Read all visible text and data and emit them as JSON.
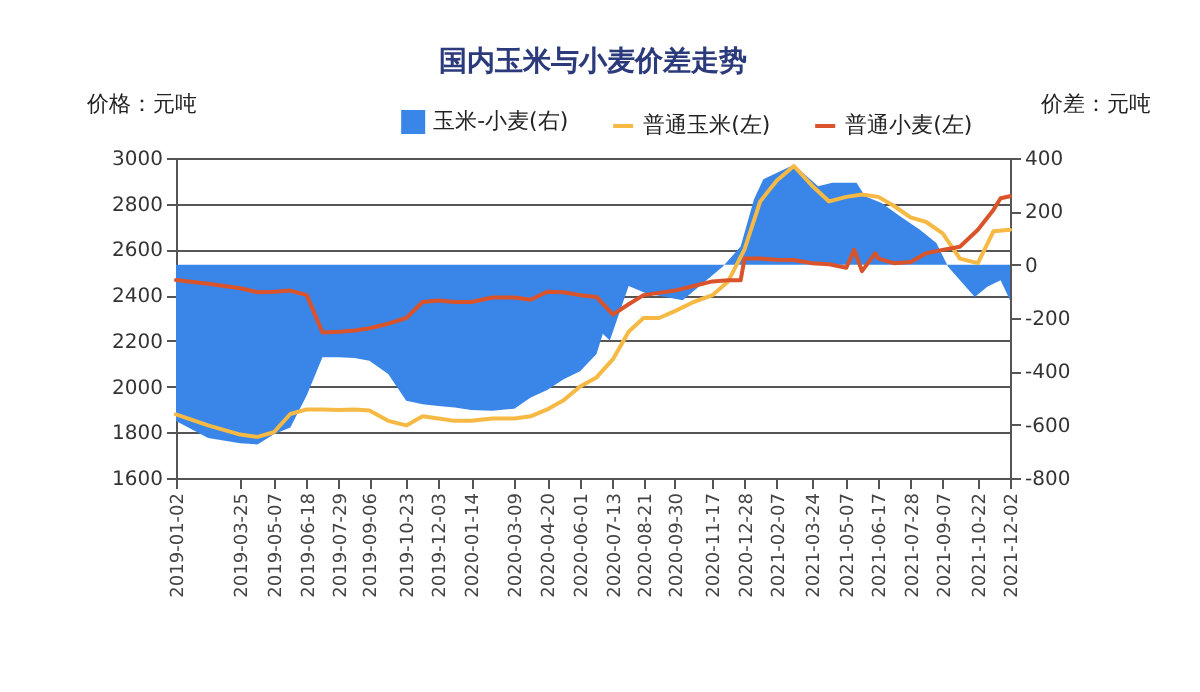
{
  "chart_data": {
    "type": "line",
    "title": "国内玉米与小麦价差走势",
    "ylabel": "价格：元吨",
    "y2label": "价差：元吨",
    "xlim": [
      "2019-01-02",
      "2021-12-02"
    ],
    "xticks": [
      "2019-01-02",
      "2019-03-25",
      "2019-05-07",
      "2019-06-18",
      "2019-07-29",
      "2019-09-06",
      "2019-10-23",
      "2019-12-03",
      "2020-01-14",
      "2020-03-09",
      "2020-04-20",
      "2020-06-01",
      "2020-07-13",
      "2020-08-21",
      "2020-09-30",
      "2020-11-17",
      "2020-12-28",
      "2021-02-07",
      "2021-03-24",
      "2021-05-07",
      "2021-06-17",
      "2021-07-28",
      "2021-09-07",
      "2021-10-22",
      "2021-12-02"
    ],
    "ylim": [
      1600,
      3000
    ],
    "yticks": [
      1600,
      1800,
      2000,
      2200,
      2400,
      2600,
      2800,
      3000
    ],
    "y2lim": [
      -800,
      400
    ],
    "y2ticks": [
      -800,
      -600,
      -400,
      -200,
      0,
      200,
      400
    ],
    "grid": "y",
    "legend": "top",
    "series": [
      {
        "name": "玉米-小麦(右)",
        "type": "area",
        "axis": "y2",
        "color": "#3a86e8",
        "x": [
          "2019-01-02",
          "2019-02-12",
          "2019-03-25",
          "2019-04-16",
          "2019-05-07",
          "2019-05-28",
          "2019-06-18",
          "2019-07-08",
          "2019-07-29",
          "2019-08-18",
          "2019-09-06",
          "2019-09-30",
          "2019-10-23",
          "2019-11-13",
          "2019-12-03",
          "2019-12-24",
          "2020-01-14",
          "2020-02-10",
          "2020-03-09",
          "2020-03-30",
          "2020-04-20",
          "2020-05-11",
          "2020-06-01",
          "2020-06-22",
          "2020-06-30",
          "2020-07-09",
          "2020-08-02",
          "2020-08-25",
          "2020-10-10",
          "2020-11-30",
          "2020-12-23",
          "2021-01-09",
          "2021-01-21",
          "2021-03-01",
          "2021-04-01",
          "2021-04-19",
          "2021-05-20",
          "2021-05-31",
          "2021-06-21",
          "2021-07-15",
          "2021-08-09",
          "2021-08-30",
          "2021-09-14",
          "2021-10-18",
          "2021-11-03",
          "2021-11-20",
          "2021-12-02"
        ],
        "values": [
          -586,
          -650,
          -670,
          -674,
          -636,
          -611,
          -490,
          -347,
          -347,
          -350,
          -360,
          -410,
          -510,
          -523,
          -530,
          -536,
          -545,
          -548,
          -540,
          -498,
          -470,
          -430,
          -400,
          -335,
          -259,
          -284,
          -80,
          -108,
          -133,
          -8,
          68,
          244,
          320,
          375,
          294,
          307,
          307,
          257,
          231,
          181,
          131,
          81,
          -8,
          -121,
          -83,
          -58,
          -133
        ]
      },
      {
        "name": "普通玉米(左)",
        "color": "#f5b944",
        "x": [
          "2019-01-02",
          "2019-02-12",
          "2019-03-25",
          "2019-04-16",
          "2019-05-07",
          "2019-05-28",
          "2019-06-18",
          "2019-07-08",
          "2019-07-29",
          "2019-08-18",
          "2019-09-06",
          "2019-09-30",
          "2019-10-23",
          "2019-11-13",
          "2019-12-03",
          "2019-12-24",
          "2020-01-14",
          "2020-02-10",
          "2020-03-09",
          "2020-03-30",
          "2020-04-20",
          "2020-05-11",
          "2020-06-01",
          "2020-06-22",
          "2020-07-13",
          "2020-08-02",
          "2020-08-21",
          "2020-09-10",
          "2020-09-30",
          "2020-10-24",
          "2020-11-17",
          "2020-12-07",
          "2020-12-28",
          "2021-01-17",
          "2021-02-07",
          "2021-03-01",
          "2021-03-24",
          "2021-04-15",
          "2021-05-07",
          "2021-05-27",
          "2021-06-17",
          "2021-07-07",
          "2021-07-28",
          "2021-08-17",
          "2021-09-07",
          "2021-09-29",
          "2021-10-22",
          "2021-11-11",
          "2021-12-02"
        ],
        "values": [
          1878,
          1830,
          1790,
          1780,
          1800,
          1880,
          1900,
          1900,
          1898,
          1900,
          1895,
          1850,
          1830,
          1870,
          1860,
          1850,
          1850,
          1860,
          1860,
          1870,
          1900,
          1940,
          2000,
          2040,
          2120,
          2240,
          2300,
          2300,
          2330,
          2370,
          2400,
          2460,
          2600,
          2810,
          2900,
          2965,
          2880,
          2810,
          2830,
          2840,
          2830,
          2790,
          2740,
          2720,
          2670,
          2560,
          2540,
          2680,
          2686
        ]
      },
      {
        "name": "普通小麦(左)",
        "color": "#d9532b",
        "x": [
          "2019-01-02",
          "2019-02-12",
          "2019-03-25",
          "2019-04-16",
          "2019-05-07",
          "2019-05-28",
          "2019-06-18",
          "2019-07-08",
          "2019-07-29",
          "2019-08-18",
          "2019-09-06",
          "2019-09-30",
          "2019-10-23",
          "2019-11-13",
          "2019-12-03",
          "2019-12-24",
          "2020-01-14",
          "2020-02-10",
          "2020-03-09",
          "2020-03-30",
          "2020-04-20",
          "2020-05-11",
          "2020-06-01",
          "2020-06-22",
          "2020-07-13",
          "2020-08-02",
          "2020-08-21",
          "2020-09-10",
          "2020-09-30",
          "2020-10-24",
          "2020-11-17",
          "2020-12-07",
          "2020-12-23",
          "2020-12-28",
          "2021-01-17",
          "2021-02-07",
          "2021-03-01",
          "2021-03-24",
          "2021-04-15",
          "2021-05-07",
          "2021-05-17",
          "2021-05-27",
          "2021-06-13",
          "2021-06-17",
          "2021-07-07",
          "2021-07-28",
          "2021-08-17",
          "2021-09-07",
          "2021-09-29",
          "2021-10-22",
          "2021-11-11",
          "2021-11-20",
          "2021-12-02"
        ],
        "values": [
          2466,
          2450,
          2430,
          2413,
          2415,
          2420,
          2400,
          2237,
          2240,
          2245,
          2255,
          2275,
          2300,
          2370,
          2377,
          2370,
          2370,
          2390,
          2390,
          2380,
          2415,
          2413,
          2400,
          2392,
          2315,
          2360,
          2400,
          2410,
          2420,
          2440,
          2460,
          2465,
          2465,
          2560,
          2560,
          2555,
          2554,
          2540,
          2535,
          2520,
          2598,
          2505,
          2583,
          2560,
          2540,
          2545,
          2583,
          2598,
          2612,
          2686,
          2774,
          2824,
          2833
        ]
      }
    ]
  }
}
